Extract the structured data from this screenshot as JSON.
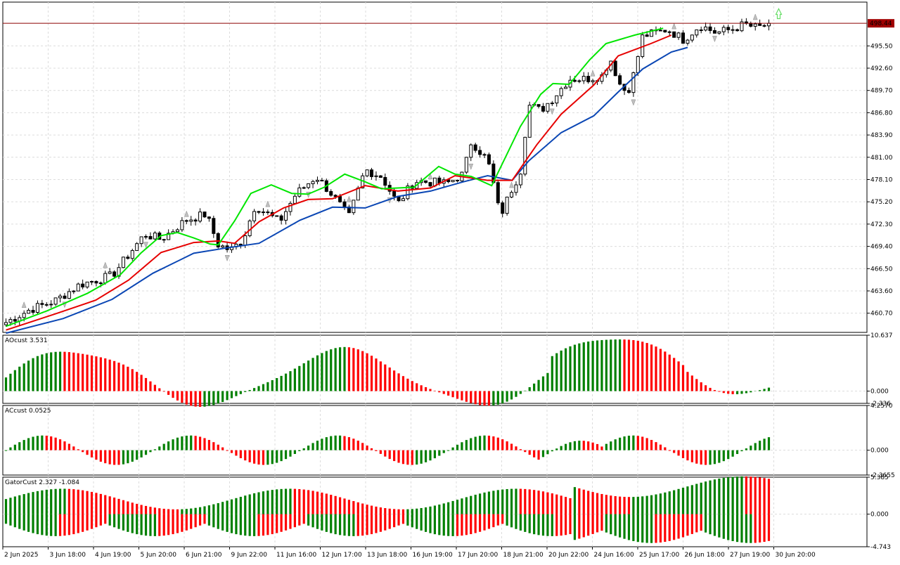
{
  "chart_data": [
    {
      "type": "candlestick",
      "name": "main",
      "ylim": [
        458.2,
        501.2
      ],
      "y_ticks": [
        "460.70",
        "463.60",
        "466.50",
        "469.40",
        "472.30",
        "475.20",
        "478.10",
        "481.00",
        "483.90",
        "486.80",
        "489.70",
        "492.60",
        "495.50"
      ],
      "current_price_label": "498.44",
      "current_price": 498.44,
      "x_labels": [
        "2 Jun 2025",
        "3 Jun 18:00",
        "4 Jun 19:00",
        "5 Jun 20:00",
        "6 Jun 21:00",
        "9 Jun 22:00",
        "11 Jun 16:00",
        "12 Jun 17:00",
        "13 Jun 18:00",
        "16 Jun 19:00",
        "17 Jun 20:00",
        "18 Jun 21:00",
        "20 Jun 22:00",
        "24 Jun 16:00",
        "25 Jun 17:00",
        "26 Jun 18:00",
        "27 Jun 19:00",
        "30 Jun 20:00"
      ],
      "alligator": {
        "lips_color": "#00e600",
        "teeth_color": "#e60000",
        "jaw_color": "#0a46b4",
        "lips": [
          [
            0,
            459.0
          ],
          [
            10,
            461.0
          ],
          [
            20,
            463.3
          ],
          [
            28,
            465.7
          ],
          [
            33,
            468.5
          ],
          [
            38,
            470.8
          ],
          [
            42,
            471.2
          ],
          [
            46,
            470.5
          ],
          [
            50,
            469.7
          ],
          [
            52,
            469.6
          ],
          [
            56,
            472.7
          ],
          [
            60,
            476.3
          ],
          [
            65,
            477.4
          ],
          [
            70,
            476.3
          ],
          [
            74,
            476.2
          ],
          [
            78,
            477.1
          ],
          [
            83,
            478.8
          ],
          [
            88,
            477.8
          ],
          [
            92,
            476.9
          ],
          [
            100,
            477.1
          ],
          [
            106,
            479.8
          ],
          [
            110,
            478.8
          ],
          [
            114,
            478.5
          ],
          [
            119,
            477.3
          ],
          [
            126,
            485.0
          ],
          [
            131,
            489.2
          ],
          [
            134,
            490.6
          ],
          [
            138,
            490.5
          ],
          [
            143,
            493.7
          ],
          [
            147,
            495.8
          ],
          [
            154,
            496.9
          ],
          [
            161,
            497.8
          ]
        ],
        "teeth": [
          [
            0,
            458.5
          ],
          [
            12,
            460.6
          ],
          [
            22,
            462.4
          ],
          [
            30,
            465.0
          ],
          [
            38,
            468.6
          ],
          [
            46,
            469.9
          ],
          [
            52,
            470.1
          ],
          [
            56,
            469.8
          ],
          [
            62,
            472.6
          ],
          [
            68,
            474.4
          ],
          [
            74,
            475.5
          ],
          [
            80,
            475.6
          ],
          [
            88,
            477.3
          ],
          [
            96,
            476.6
          ],
          [
            104,
            477.0
          ],
          [
            110,
            478.6
          ],
          [
            118,
            478.0
          ],
          [
            124,
            478.0
          ],
          [
            130,
            482.6
          ],
          [
            136,
            486.6
          ],
          [
            144,
            490.4
          ],
          [
            150,
            494.2
          ],
          [
            158,
            495.8
          ],
          [
            163,
            496.9
          ]
        ],
        "jaw": [
          [
            0,
            458.1
          ],
          [
            14,
            460.0
          ],
          [
            26,
            462.5
          ],
          [
            36,
            465.9
          ],
          [
            46,
            468.5
          ],
          [
            54,
            469.2
          ],
          [
            62,
            469.8
          ],
          [
            72,
            472.8
          ],
          [
            80,
            474.5
          ],
          [
            88,
            474.4
          ],
          [
            96,
            475.9
          ],
          [
            104,
            476.6
          ],
          [
            112,
            477.8
          ],
          [
            118,
            478.6
          ],
          [
            124,
            478.0
          ],
          [
            128,
            480.5
          ],
          [
            136,
            484.2
          ],
          [
            144,
            486.4
          ],
          [
            150,
            489.5
          ],
          [
            156,
            492.5
          ],
          [
            163,
            494.7
          ],
          [
            167,
            495.3
          ]
        ]
      }
    },
    {
      "type": "bar",
      "name": "AOcust",
      "title": "AOcust 3.531",
      "ylim": [
        -2.336,
        10.637
      ],
      "y_ticks": [
        "10.637",
        "0.000",
        "-2.336"
      ]
    },
    {
      "type": "bar",
      "name": "ACcust",
      "title": "ACcust 0.0525",
      "ylim": [
        -2.3655,
        4.257
      ],
      "y_ticks": [
        "4.2570",
        "0.000",
        "-2.3655"
      ]
    },
    {
      "type": "bar",
      "name": "GatorCust",
      "title": "GatorCust 2.327 -1.084",
      "ylim": [
        -4.743,
        5.385
      ],
      "y_ticks": [
        "5.385",
        "0.000",
        "-4.743"
      ]
    }
  ],
  "colors": {
    "up": "#008000",
    "down": "#ff0000",
    "grid": "#dcdcdc",
    "price_line": "#8b0000",
    "arrow": "#66dd66"
  }
}
